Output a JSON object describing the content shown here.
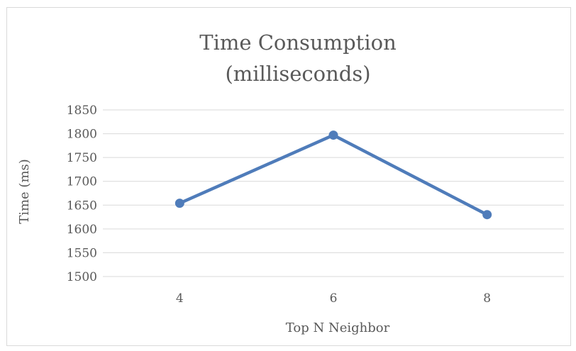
{
  "chart_data": {
    "type": "line",
    "title": "Time Consumption",
    "subtitle": "(milliseconds)",
    "xlabel": "Top N Neighbor",
    "ylabel": "Time (ms)",
    "categories": [
      "4",
      "6",
      "8"
    ],
    "series": [
      {
        "values": [
          1654,
          1797,
          1630
        ]
      }
    ],
    "ylim": [
      1500,
      1850
    ],
    "yticks": [
      "1500",
      "1550",
      "1600",
      "1650",
      "1700",
      "1750",
      "1800",
      "1850"
    ],
    "grid": true,
    "legend": "none",
    "colors": {
      "series": "#4f7cba",
      "grid": "#d9d9d9",
      "text": "#595959"
    }
  }
}
